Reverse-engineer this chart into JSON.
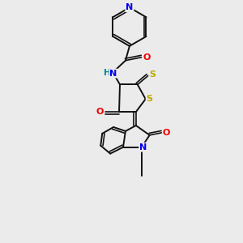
{
  "bg_color": "#ebebeb",
  "atom_colors": {
    "N": "#0000ee",
    "O": "#ee0000",
    "S": "#bbaa00",
    "C": "#000000",
    "H": "#008888"
  },
  "bond_color": "#111111",
  "lw": 1.4,
  "lw2": 1.2,
  "fs": 8.0
}
